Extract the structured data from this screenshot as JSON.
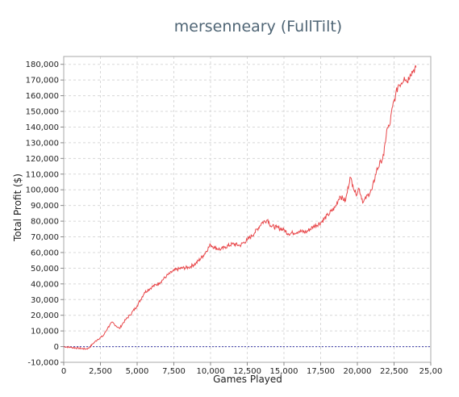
{
  "chart_data": {
    "type": "line",
    "title": "mersenneary (FullTilt)",
    "xlabel": "Games Played",
    "ylabel": "Total Profit ($)",
    "xlim": [
      0,
      25000
    ],
    "ylim": [
      -10000,
      185000
    ],
    "x_tick_labels": [
      "0",
      "2,500",
      "5,000",
      "7,500",
      "10,000",
      "12,500",
      "15,000",
      "17,500",
      "20,000",
      "22,500",
      "25,00"
    ],
    "y_tick_labels": [
      "-10,000",
      "0",
      "10,000",
      "20,000",
      "30,000",
      "40,000",
      "50,000",
      "60,000",
      "70,000",
      "80,000",
      "90,000",
      "100,000",
      "110,000",
      "120,000",
      "130,000",
      "140,000",
      "150,000",
      "160,000",
      "170,000",
      "180,000"
    ],
    "grid": true,
    "zero_line": true,
    "colors": {
      "line": "#e8474a",
      "zero_line": "#3a3aa8",
      "grid": "#d8d8d8",
      "title": "#4f6575"
    },
    "series": [
      {
        "x": [
          0,
          500,
          1000,
          1500,
          1700,
          2000,
          2300,
          2700,
          3000,
          3300,
          3600,
          3800,
          4000,
          4200,
          4500,
          5000,
          5500,
          6000,
          6500,
          7000,
          7500,
          8000,
          8500,
          9000,
          9500,
          10000,
          10300,
          10700,
          11000,
          11500,
          12000,
          12500,
          13000,
          13500,
          13900,
          14100,
          14500,
          15000,
          15300,
          15600,
          16000,
          16500,
          17000,
          17500,
          18000,
          18500,
          18800,
          19200,
          19500,
          19700,
          19900,
          20100,
          20400,
          20700,
          21000,
          21300,
          21600,
          21800,
          22000,
          22200,
          22400,
          22600,
          22800,
          23000,
          23200,
          23400,
          23600,
          23800,
          24000
        ],
        "values": [
          0,
          -500,
          -1000,
          -1500,
          -1000,
          2000,
          4500,
          7000,
          12000,
          15500,
          13000,
          11500,
          14500,
          17000,
          20000,
          26000,
          34500,
          38000,
          40500,
          45000,
          48500,
          50000,
          50500,
          53000,
          58000,
          65000,
          63000,
          62000,
          63500,
          65500,
          64500,
          68000,
          72500,
          79000,
          81000,
          77000,
          76000,
          74500,
          72000,
          72500,
          73500,
          73000,
          76500,
          79000,
          84000,
          89000,
          96000,
          93000,
          108000,
          103000,
          97000,
          101000,
          92000,
          96500,
          100000,
          112000,
          118000,
          122000,
          138000,
          141000,
          153000,
          160000,
          167000,
          168000,
          172000,
          169000,
          174000,
          176000,
          178000
        ]
      }
    ]
  }
}
